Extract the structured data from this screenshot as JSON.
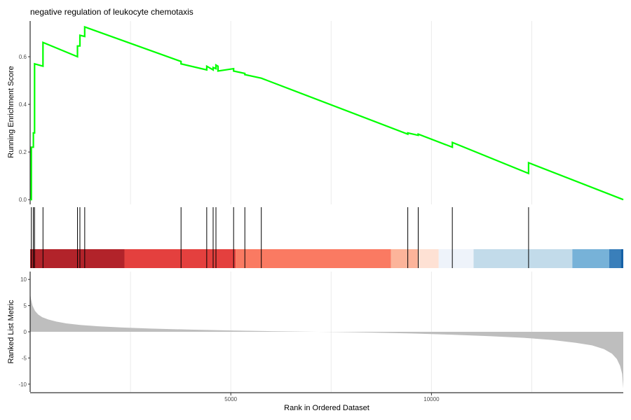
{
  "chart_data": {
    "type": "line",
    "title": "negative regulation of leukocyte chemotaxis",
    "xlabel": "Rank in Ordered Dataset",
    "panels": {
      "enrichment": {
        "ylabel": "Running Enrichment Score",
        "ylim": [
          -0.02,
          0.75
        ],
        "yticks": [
          0.0,
          0.2,
          0.4,
          0.6
        ],
        "ytick_labels": [
          "0.0",
          "0.2",
          "0.4",
          "0.6"
        ],
        "line_color": "#00ff00",
        "series": [
          {
            "x": [
              0,
              30,
              30,
              80,
              80,
              110,
              110,
              320,
              320,
              1180,
              1180,
              1240,
              1240,
              1360,
              1360,
              3760,
              3760,
              4400,
              4400,
              4560,
              4560,
              4630,
              4630,
              4680,
              4680,
              5070,
              5070,
              5350,
              5350,
              5760,
              5760,
              9410,
              9410,
              9670,
              9670,
              10520,
              10520,
              12420,
              12420,
              14780
            ],
            "y": [
              0.0,
              0.0,
              0.22,
              0.22,
              0.28,
              0.28,
              0.57,
              0.56,
              0.66,
              0.6,
              0.645,
              0.645,
              0.69,
              0.685,
              0.725,
              0.58,
              0.57,
              0.545,
              0.56,
              0.545,
              0.555,
              0.55,
              0.565,
              0.56,
              0.54,
              0.55,
              0.54,
              0.53,
              0.525,
              0.51,
              0.51,
              0.275,
              0.28,
              0.27,
              0.275,
              0.22,
              0.24,
              0.11,
              0.155,
              0.0
            ]
          }
        ]
      },
      "hits": {
        "positions": [
          30,
          80,
          110,
          320,
          1180,
          1240,
          1360,
          3760,
          4400,
          4560,
          4630,
          5070,
          5350,
          5760,
          9410,
          9670,
          10520,
          12420
        ]
      },
      "heat_band": {
        "segments": [
          {
            "start": 0,
            "end": 2350,
            "color": "#b2232a"
          },
          {
            "start": 2350,
            "end": 5120,
            "color": "#e4403e"
          },
          {
            "start": 5120,
            "end": 8990,
            "color": "#fa7a62"
          },
          {
            "start": 8990,
            "end": 9660,
            "color": "#fcb49a"
          },
          {
            "start": 9660,
            "end": 10180,
            "color": "#fee1d4"
          },
          {
            "start": 10180,
            "end": 11050,
            "color": "#eef3fa"
          },
          {
            "start": 11050,
            "end": 13510,
            "color": "#c2dbea"
          },
          {
            "start": 13510,
            "end": 14430,
            "color": "#77b2d8"
          },
          {
            "start": 14430,
            "end": 14720,
            "color": "#3a7fba"
          },
          {
            "start": 14720,
            "end": 14780,
            "color": "#1561a6"
          }
        ]
      },
      "ranked": {
        "ylabel": "Ranked List Metric",
        "ylim": [
          -11.5,
          11.5
        ],
        "yticks": [
          10,
          5,
          0,
          -5,
          -10
        ],
        "ytick_labels": [
          "10",
          "5",
          "0",
          "-5",
          "-10"
        ],
        "fill_color": "#bebebe",
        "curve": {
          "x": [
            0,
            20,
            60,
            120,
            200,
            300,
            450,
            650,
            900,
            1250,
            1700,
            2300,
            3000,
            4000,
            5000,
            6000,
            7000,
            7700,
            8500,
            9500,
            10500,
            11500,
            12300,
            13000,
            13600,
            14000,
            14300,
            14500,
            14620,
            14700,
            14750,
            14780
          ],
          "y": [
            7.5,
            6.3,
            5.0,
            4.0,
            3.3,
            2.8,
            2.35,
            1.95,
            1.6,
            1.3,
            1.05,
            0.82,
            0.62,
            0.42,
            0.25,
            0.12,
            0.02,
            -0.05,
            -0.15,
            -0.32,
            -0.55,
            -0.85,
            -1.15,
            -1.55,
            -2.1,
            -2.6,
            -3.3,
            -4.2,
            -5.2,
            -6.5,
            -8.0,
            -10.8
          ]
        }
      }
    },
    "xlim": [
      0,
      14780
    ],
    "xticks": [
      5000,
      10000
    ],
    "xtick_labels": [
      "5000",
      "10000"
    ],
    "grid": "vertical"
  }
}
